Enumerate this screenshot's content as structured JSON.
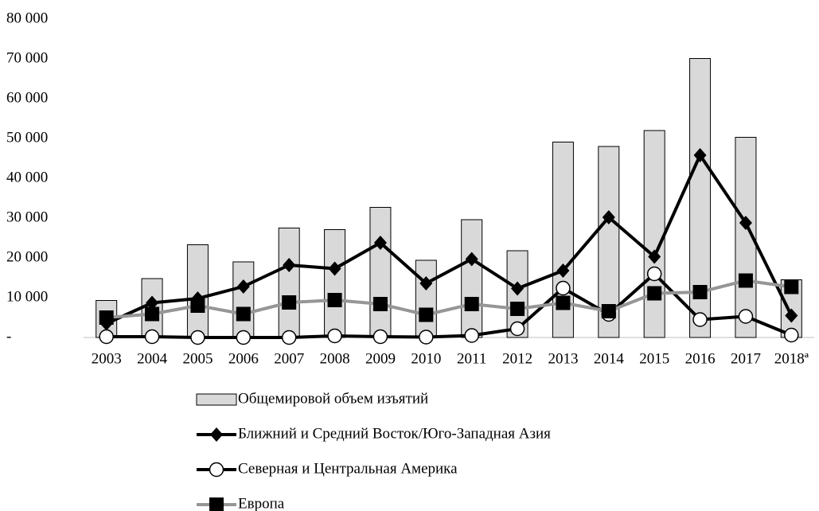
{
  "chart_data": {
    "type": "combo",
    "categories": [
      "2003",
      "2004",
      "2005",
      "2006",
      "2007",
      "2008",
      "2009",
      "2010",
      "2011",
      "2012",
      "2013",
      "2014",
      "2015",
      "2016",
      "2017",
      "2018ª"
    ],
    "series": [
      {
        "name": "Общемировой объем изъятий",
        "type": "bar",
        "color": "#d9d9d9",
        "values": [
          9300,
          14800,
          23300,
          19000,
          27500,
          27100,
          32700,
          19400,
          29600,
          21800,
          49100,
          48000,
          52000,
          70100,
          50300,
          14500
        ]
      },
      {
        "name": "Ближний и Средний Восток/Юго-Западная Азия",
        "type": "line",
        "marker": "diamond",
        "color": "#000000",
        "values": [
          3500,
          8700,
          9800,
          12800,
          18200,
          17300,
          23800,
          13600,
          19700,
          12300,
          16800,
          30200,
          20300,
          45800,
          28800,
          5500
        ]
      },
      {
        "name": "Северная и Центральная Америка",
        "type": "line",
        "marker": "circle",
        "color": "#000000",
        "values": [
          200,
          200,
          0,
          0,
          0,
          400,
          200,
          100,
          500,
          2200,
          12400,
          5800,
          16000,
          4500,
          5300,
          600
        ]
      },
      {
        "name": "Европа",
        "type": "line",
        "marker": "square",
        "color": "#969696",
        "values": [
          5000,
          5900,
          8000,
          5900,
          8800,
          9400,
          8400,
          5700,
          8400,
          7200,
          8700,
          6600,
          11100,
          11400,
          14300,
          12700
        ]
      }
    ],
    "ylim": [
      0,
      80000
    ],
    "yticks": [
      {
        "value": 0,
        "label": "-"
      },
      {
        "value": 10000,
        "label": "10 000"
      },
      {
        "value": 20000,
        "label": "20 000"
      },
      {
        "value": 30000,
        "label": "30 000"
      },
      {
        "value": 40000,
        "label": "40 000"
      },
      {
        "value": 50000,
        "label": "50 000"
      },
      {
        "value": 60000,
        "label": "60 000"
      },
      {
        "value": 70000,
        "label": "70 000"
      },
      {
        "value": 80000,
        "label": "80 000"
      }
    ],
    "grid": false,
    "legend": "bottom"
  }
}
